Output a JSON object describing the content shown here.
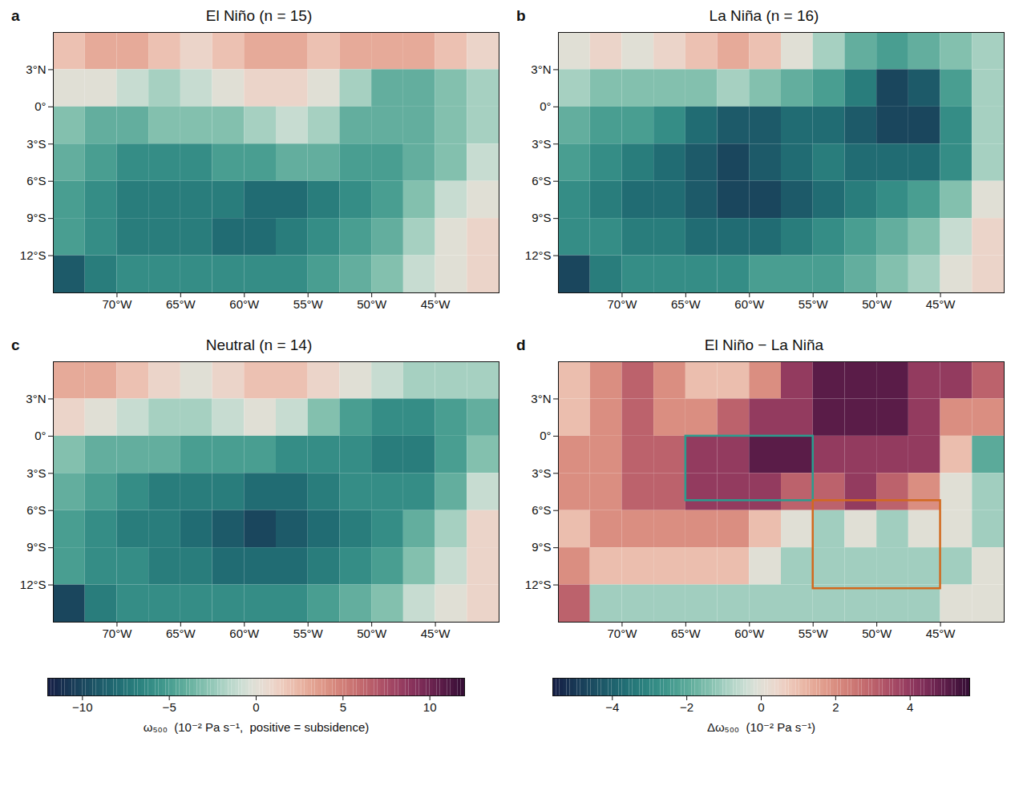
{
  "chart_data": {
    "type": "heatmap",
    "xlim": [
      -75,
      -40
    ],
    "ylim": [
      -15,
      6
    ],
    "xticks": [
      {
        "value": -70,
        "label": "70°W"
      },
      {
        "value": -65,
        "label": "65°W"
      },
      {
        "value": -60,
        "label": "60°W"
      },
      {
        "value": -55,
        "label": "55°W"
      },
      {
        "value": -50,
        "label": "50°W"
      },
      {
        "value": -45,
        "label": "45°W"
      }
    ],
    "yticks": [
      {
        "value": 3,
        "label": "3°N"
      },
      {
        "value": 0,
        "label": "0°"
      },
      {
        "value": -3,
        "label": "3°S"
      },
      {
        "value": -6,
        "label": "6°S"
      },
      {
        "value": -9,
        "label": "9°S"
      },
      {
        "value": -12,
        "label": "12°S"
      }
    ],
    "lon_edges": [
      -75,
      -72.5,
      -70,
      -67.5,
      -65,
      -62.5,
      -60,
      -57.5,
      -55,
      -52.5,
      -50,
      -47.5,
      -45,
      -42.5,
      -40
    ],
    "lat_edges": [
      6,
      3,
      0,
      -3,
      -6,
      -9,
      -12,
      -15
    ],
    "panels": [
      {
        "letter": "a",
        "title": "El Niño  (n = 15)",
        "zlim": [
          -12,
          12
        ],
        "values": [
          [
            2,
            3,
            3,
            2,
            1,
            2,
            3,
            3,
            2,
            3,
            3,
            3,
            2,
            1
          ],
          [
            0,
            0,
            -1,
            -2,
            -1,
            0,
            1,
            1,
            0,
            -2,
            -4,
            -4,
            -3,
            -2
          ],
          [
            -3,
            -4,
            -4,
            -3,
            -3,
            -3,
            -2,
            -1,
            -2,
            -4,
            -4,
            -4,
            -3,
            -2
          ],
          [
            -4,
            -5,
            -6,
            -6,
            -6,
            -5,
            -5,
            -4,
            -4,
            -5,
            -5,
            -4,
            -3,
            -1
          ],
          [
            -5,
            -6,
            -7,
            -7,
            -7,
            -7,
            -8,
            -8,
            -7,
            -6,
            -5,
            -3,
            -1,
            0
          ],
          [
            -5,
            -6,
            -7,
            -7,
            -7,
            -8,
            -8,
            -7,
            -6,
            -5,
            -4,
            -2,
            0,
            1
          ],
          [
            -9,
            -7,
            -6,
            -6,
            -6,
            -6,
            -6,
            -6,
            -5,
            -4,
            -3,
            -1,
            0,
            1
          ]
        ]
      },
      {
        "letter": "b",
        "title": "La Niña  (n = 16)",
        "zlim": [
          -12,
          12
        ],
        "values": [
          [
            0,
            1,
            0,
            1,
            2,
            3,
            2,
            0,
            -2,
            -4,
            -5,
            -4,
            -3,
            -2
          ],
          [
            -2,
            -3,
            -3,
            -3,
            -3,
            -2,
            -3,
            -4,
            -5,
            -7,
            -10,
            -9,
            -5,
            -2
          ],
          [
            -4,
            -5,
            -5,
            -6,
            -8,
            -9,
            -9,
            -8,
            -8,
            -9,
            -10,
            -10,
            -6,
            -2
          ],
          [
            -5,
            -6,
            -7,
            -8,
            -9,
            -10,
            -9,
            -8,
            -7,
            -8,
            -8,
            -8,
            -6,
            -2
          ],
          [
            -6,
            -7,
            -8,
            -8,
            -9,
            -10,
            -10,
            -9,
            -8,
            -7,
            -6,
            -5,
            -3,
            0
          ],
          [
            -6,
            -6,
            -7,
            -7,
            -8,
            -8,
            -8,
            -7,
            -6,
            -5,
            -4,
            -3,
            -1,
            1
          ],
          [
            -10,
            -7,
            -6,
            -6,
            -6,
            -6,
            -5,
            -5,
            -5,
            -4,
            -3,
            -2,
            0,
            1
          ]
        ]
      },
      {
        "letter": "c",
        "title": "Neutral  (n = 14)",
        "zlim": [
          -12,
          12
        ],
        "values": [
          [
            3,
            3,
            2,
            1,
            0,
            1,
            2,
            2,
            1,
            0,
            -1,
            -2,
            -2,
            -2
          ],
          [
            1,
            0,
            -1,
            -2,
            -2,
            -1,
            0,
            -1,
            -3,
            -5,
            -6,
            -6,
            -5,
            -4
          ],
          [
            -3,
            -4,
            -4,
            -4,
            -5,
            -5,
            -5,
            -6,
            -6,
            -6,
            -7,
            -7,
            -5,
            -3
          ],
          [
            -4,
            -5,
            -6,
            -7,
            -7,
            -7,
            -8,
            -8,
            -7,
            -6,
            -6,
            -6,
            -4,
            -1
          ],
          [
            -5,
            -6,
            -7,
            -7,
            -8,
            -9,
            -10,
            -9,
            -8,
            -7,
            -6,
            -4,
            -2,
            1
          ],
          [
            -5,
            -6,
            -6,
            -7,
            -7,
            -8,
            -8,
            -8,
            -7,
            -6,
            -5,
            -3,
            -1,
            1
          ],
          [
            -10,
            -7,
            -6,
            -6,
            -6,
            -6,
            -6,
            -6,
            -5,
            -4,
            -3,
            -1,
            0,
            1
          ]
        ]
      },
      {
        "letter": "d",
        "title": "El Niño − La Niña",
        "zlim": [
          -5.6,
          5.6
        ],
        "values": [
          [
            1,
            2,
            3,
            2,
            1,
            1,
            2,
            4,
            5,
            5,
            5,
            4,
            4,
            3
          ],
          [
            1,
            2,
            3,
            2,
            2,
            3,
            4,
            4,
            5,
            5,
            5,
            4,
            2,
            2
          ],
          [
            2,
            2,
            3,
            3,
            4,
            4,
            5,
            5,
            4,
            4,
            4,
            4,
            1,
            -2
          ],
          [
            2,
            2,
            3,
            3,
            4,
            4,
            4,
            3,
            3,
            4,
            3,
            2,
            0,
            -1
          ],
          [
            1,
            2,
            2,
            2,
            2,
            2,
            1,
            0,
            -1,
            0,
            -1,
            0,
            0,
            -1
          ],
          [
            2,
            1,
            1,
            1,
            1,
            1,
            0,
            -1,
            -1,
            -1,
            -1,
            -1,
            -1,
            0
          ],
          [
            3,
            -1,
            -1,
            -1,
            -1,
            -1,
            -1,
            -1,
            -1,
            -1,
            -1,
            -1,
            0,
            0
          ]
        ],
        "boxes": [
          {
            "lon": [
              -65,
              -55
            ],
            "lat": [
              -5.2,
              0
            ],
            "color": "#2a9d8f"
          },
          {
            "lon": [
              -55,
              -45
            ],
            "lat": [
              -12.3,
              -5.2
            ],
            "color": "#d2691e"
          }
        ]
      }
    ],
    "colorbars": [
      {
        "label": "ω₅₀₀  (10⁻² Pa s⁻¹,  positive = subsidence)",
        "zlim": [
          -12,
          12
        ],
        "zticks": [
          -10,
          -5,
          0,
          5,
          10
        ]
      },
      {
        "label": "Δω₅₀₀  (10⁻² Pa s⁻¹)",
        "zlim": [
          -5.6,
          5.6
        ],
        "zticks": [
          -4,
          -2,
          0,
          2,
          4
        ]
      }
    ]
  }
}
